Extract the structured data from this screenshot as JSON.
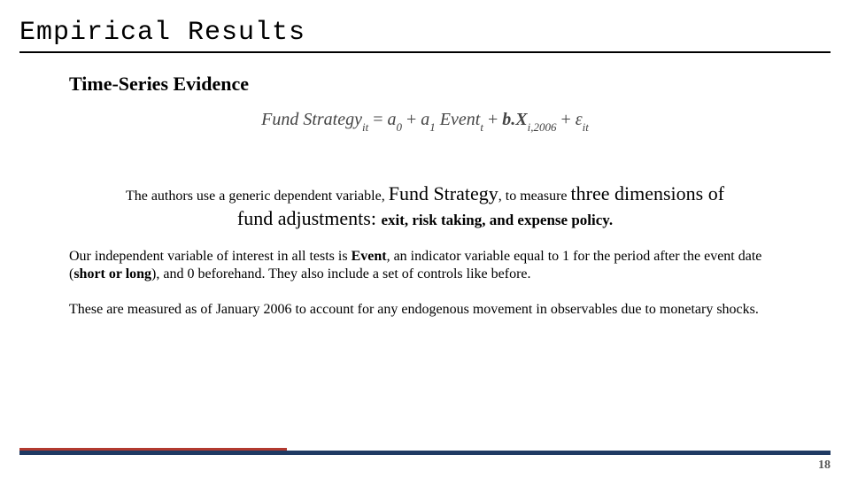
{
  "title": "Empirical Results",
  "subtitle": "Time-Series Evidence",
  "equation": {
    "lhs": "Fund Strategy",
    "lhs_sub": "it",
    "a0": "a",
    "a0_sub": "0",
    "a1": "a",
    "a1_sub": "1",
    "event": "Event",
    "event_sub": "t",
    "bx": "b.X",
    "bx_sub": "i,2006",
    "eps": "ε",
    "eps_sub": "it"
  },
  "sentence1": {
    "part1": "The authors use a generic dependent variable, ",
    "fundstrategy": "Fund Strategy",
    "part2": ", to measure ",
    "three_dims": "three dimensions of"
  },
  "sentence2": {
    "fund_adj": "fund adjustments: ",
    "bolded": "exit, risk taking, and expense policy."
  },
  "para1": {
    "p1": "Our independent variable of interest in all tests is ",
    "event": "Event",
    "p2": ", an indicator variable equal to 1 for the period after the event date (",
    "shortlong": "short or long",
    "p3": "), and 0 beforehand. They also include a set of controls like before."
  },
  "para2": "These are measured as of January 2006 to account for any endogenous movement in observables due to monetary shocks.",
  "page_number": "18",
  "colors": {
    "footer_dark": "#1f3a63",
    "footer_red": "#b23a2f"
  }
}
